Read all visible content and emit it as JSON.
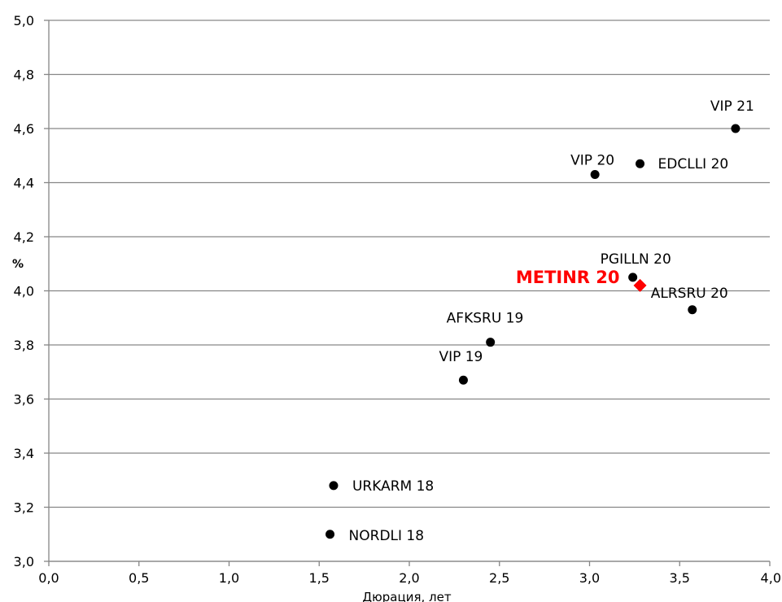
{
  "chart_data": {
    "type": "scatter",
    "xlabel": "Дюрация, лет",
    "ylabel": "%",
    "xlim": [
      0.0,
      4.0
    ],
    "ylim": [
      3.0,
      5.0
    ],
    "x_ticks": [
      0.0,
      0.5,
      1.0,
      1.5,
      2.0,
      2.5,
      3.0,
      3.5,
      4.0
    ],
    "x_tick_labels": [
      "0,0",
      "0,5",
      "1,0",
      "1,5",
      "2,0",
      "2,5",
      "3,0",
      "3,5",
      "4,0"
    ],
    "y_ticks": [
      3.0,
      3.2,
      3.4,
      3.6,
      3.8,
      4.0,
      4.2,
      4.4,
      4.6,
      4.8,
      5.0
    ],
    "y_tick_labels": [
      "3,0",
      "3,2",
      "3,4",
      "3,6",
      "3,8",
      "4,0",
      "4,2",
      "4,4",
      "4,6",
      "4,8",
      "5,0"
    ],
    "grid": "horizontal",
    "marker_color": "#000000",
    "highlight_color": "#ff0000",
    "points": [
      {
        "label": "VIP 21",
        "x": 3.81,
        "y": 4.6
      },
      {
        "label": "EDCLLI 20",
        "x": 3.28,
        "y": 4.47
      },
      {
        "label": "VIP 20",
        "x": 3.03,
        "y": 4.43
      },
      {
        "label": "PGILLN 20",
        "x": 3.24,
        "y": 4.05
      },
      {
        "label": "ALRSRU 20",
        "x": 3.57,
        "y": 3.93
      },
      {
        "label": "AFKSRU 19",
        "x": 2.45,
        "y": 3.81
      },
      {
        "label": "VIP 19",
        "x": 2.3,
        "y": 3.67
      },
      {
        "label": "URKARM 18",
        "x": 1.58,
        "y": 3.28
      },
      {
        "label": "NORDLI 18",
        "x": 1.56,
        "y": 3.1
      }
    ],
    "highlight": {
      "label": "METINR 20",
      "x": 3.28,
      "y": 4.02
    }
  }
}
